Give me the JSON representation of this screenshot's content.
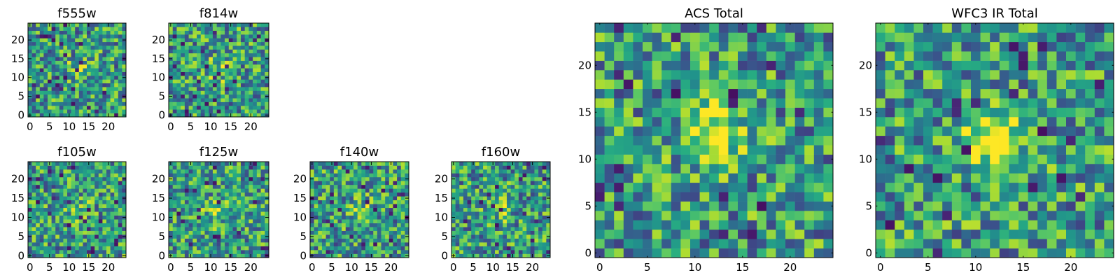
{
  "chart_data": [
    {
      "type": "heatmap",
      "title": "f555w",
      "xticks": [
        0,
        5,
        10,
        15,
        20
      ],
      "yticks": [
        0,
        5,
        10,
        15,
        20
      ],
      "xlim": [
        -0.5,
        24.5
      ],
      "ylim": [
        -0.5,
        24.5
      ],
      "grid": false,
      "colormap": "viridis",
      "grid_size": [
        25,
        25
      ],
      "seed": 11,
      "blob": {
        "x": 12,
        "y": 12,
        "strength": 0.15
      }
    },
    {
      "type": "heatmap",
      "title": "f814w",
      "xticks": [
        0,
        5,
        10,
        15,
        20
      ],
      "yticks": [
        0,
        5,
        10,
        15,
        20
      ],
      "xlim": [
        -0.5,
        24.5
      ],
      "ylim": [
        -0.5,
        24.5
      ],
      "grid": false,
      "colormap": "viridis",
      "grid_size": [
        25,
        25
      ],
      "seed": 23,
      "blob": {
        "x": 12,
        "y": 12,
        "strength": 0.25
      }
    },
    {
      "type": "heatmap",
      "title": "f105w",
      "xticks": [
        0,
        5,
        10,
        15,
        20
      ],
      "yticks": [
        0,
        5,
        10,
        15,
        20
      ],
      "xlim": [
        -0.5,
        24.5
      ],
      "ylim": [
        -0.5,
        24.5
      ],
      "grid": false,
      "colormap": "viridis",
      "grid_size": [
        25,
        25
      ],
      "seed": 37,
      "blob": {
        "x": 12,
        "y": 12,
        "strength": 0.2
      }
    },
    {
      "type": "heatmap",
      "title": "f125w",
      "xticks": [
        0,
        5,
        10,
        15,
        20
      ],
      "yticks": [
        0,
        5,
        10,
        15,
        20
      ],
      "xlim": [
        -0.5,
        24.5
      ],
      "ylim": [
        -0.5,
        24.5
      ],
      "grid": false,
      "colormap": "viridis",
      "grid_size": [
        25,
        25
      ],
      "seed": 41,
      "blob": {
        "x": 12,
        "y": 12,
        "strength": 0.25
      }
    },
    {
      "type": "heatmap",
      "title": "f140w",
      "xticks": [
        0,
        5,
        10,
        15,
        20
      ],
      "yticks": [
        0,
        5,
        10,
        15,
        20
      ],
      "xlim": [
        -0.5,
        24.5
      ],
      "ylim": [
        -0.5,
        24.5
      ],
      "grid": false,
      "colormap": "viridis",
      "grid_size": [
        25,
        25
      ],
      "seed": 53,
      "blob": {
        "x": 12,
        "y": 12,
        "strength": 0.2
      }
    },
    {
      "type": "heatmap",
      "title": "f160w",
      "xticks": [
        0,
        5,
        10,
        15,
        20
      ],
      "yticks": [
        0,
        5,
        10,
        15,
        20
      ],
      "xlim": [
        -0.5,
        24.5
      ],
      "ylim": [
        -0.5,
        24.5
      ],
      "grid": false,
      "colormap": "viridis",
      "grid_size": [
        25,
        25
      ],
      "seed": 67,
      "blob": {
        "x": 12,
        "y": 12,
        "strength": 0.2
      }
    },
    {
      "type": "heatmap",
      "title": "ACS Total",
      "xticks": [
        0,
        5,
        10,
        15,
        20
      ],
      "yticks": [
        0,
        5,
        10,
        15,
        20
      ],
      "xlim": [
        -0.5,
        24.5
      ],
      "ylim": [
        -0.5,
        24.5
      ],
      "grid": false,
      "colormap": "viridis",
      "grid_size": [
        25,
        25
      ],
      "seed": 79,
      "blob": {
        "x": 12,
        "y": 13,
        "strength": 0.45
      }
    },
    {
      "type": "heatmap",
      "title": "WFC3 IR Total",
      "xticks": [
        0,
        5,
        10,
        15,
        20
      ],
      "yticks": [
        0,
        5,
        10,
        15,
        20
      ],
      "xlim": [
        -0.5,
        24.5
      ],
      "ylim": [
        -0.5,
        24.5
      ],
      "grid": false,
      "colormap": "viridis",
      "grid_size": [
        25,
        25
      ],
      "seed": 97,
      "blob": {
        "x": 12,
        "y": 12,
        "strength": 0.55
      }
    }
  ]
}
